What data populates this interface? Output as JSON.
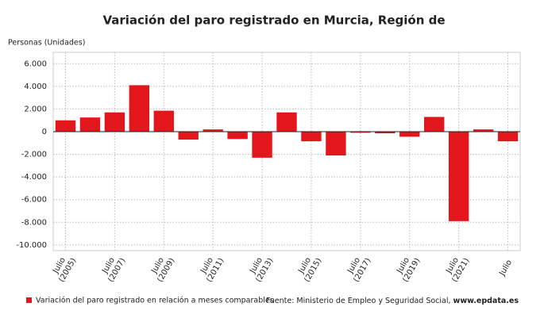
{
  "chart_data": {
    "type": "bar",
    "title": "Variación del paro registrado en Murcia, Región de",
    "y_axis_label": "Personas (Unidades)",
    "categories": [
      "Julio\n(2005)",
      null,
      "Julio\n(2007)",
      null,
      "Julio\n(2009)",
      null,
      "Julio\n(2011)",
      null,
      "Julio\n(2013)",
      null,
      "Julio\n(2015)",
      null,
      "Julio\n(2017)",
      null,
      "Julio\n(2019)",
      null,
      "Julio\n(2021)",
      null,
      "Julio"
    ],
    "series": [
      {
        "name": "Variación del paro registrado en relación a meses comparables",
        "color": "#e3171b",
        "values": [
          1000,
          1250,
          1700,
          4100,
          1850,
          -700,
          200,
          -650,
          -2300,
          1700,
          -850,
          -2100,
          -100,
          -150,
          -450,
          1300,
          -7900,
          200,
          -850
        ]
      }
    ],
    "ylim": [
      -10500,
      7000
    ],
    "yticks": [
      {
        "value": -10000,
        "label": "-10.000"
      },
      {
        "value": -8000,
        "label": "-8.000"
      },
      {
        "value": -6000,
        "label": "-6.000"
      },
      {
        "value": -4000,
        "label": "-4.000"
      },
      {
        "value": -2000,
        "label": "-2.000"
      },
      0,
      {
        "value": 2000,
        "label": "2.000"
      },
      {
        "value": 4000,
        "label": "4.000"
      },
      {
        "value": 6000,
        "label": "6.000"
      }
    ],
    "grid": true,
    "source": "Fuente: Ministerio de Empleo y Seguridad Social, ",
    "source_site": "www.epdata.es"
  }
}
